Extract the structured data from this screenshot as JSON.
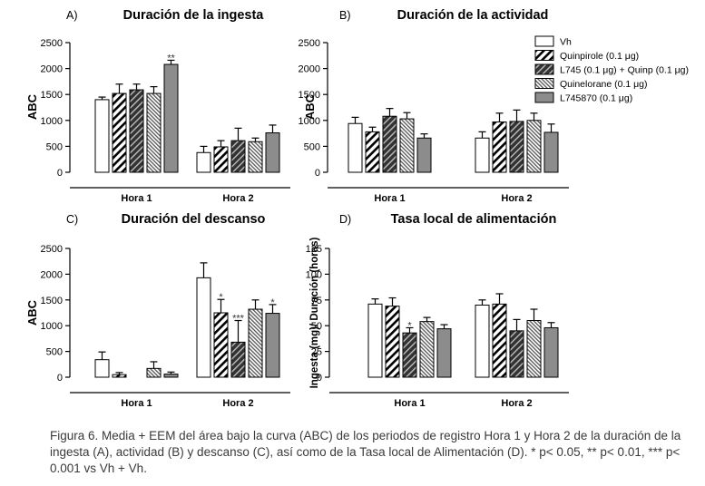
{
  "chart_data": [
    {
      "type": "bar",
      "panel": "A)",
      "title": "Duración de la ingesta",
      "ylabel": "ABC",
      "xlabel": "",
      "ylim": [
        0,
        2500
      ],
      "yticks": [
        0,
        500,
        1000,
        1500,
        2000,
        2500
      ],
      "categories": [
        "Hora 1",
        "Hora 2"
      ],
      "series": [
        {
          "name": "Vh",
          "values": [
            1400,
            380
          ],
          "errors": [
            50,
            120
          ],
          "annotations": [
            "",
            ""
          ]
        },
        {
          "name": "Quinpirole (0.1 μg)",
          "values": [
            1520,
            490
          ],
          "errors": [
            180,
            120
          ],
          "annotations": [
            "",
            ""
          ]
        },
        {
          "name": "L745 (0.1 μg) + Quinp (0.1 μg)",
          "values": [
            1590,
            610
          ],
          "errors": [
            110,
            240
          ],
          "annotations": [
            "",
            ""
          ]
        },
        {
          "name": "Quinelorane (0.1 μg)",
          "values": [
            1520,
            590
          ],
          "errors": [
            130,
            70
          ],
          "annotations": [
            "",
            ""
          ]
        },
        {
          "name": "L745870 (0.1 μg)",
          "values": [
            2080,
            760
          ],
          "errors": [
            80,
            150
          ],
          "annotations": [
            "**",
            ""
          ]
        }
      ]
    },
    {
      "type": "bar",
      "panel": "B)",
      "title": "Duración de la actividad",
      "ylabel": "ABC",
      "xlabel": "",
      "ylim": [
        0,
        2500
      ],
      "yticks": [
        0,
        500,
        1000,
        1500,
        2000,
        2500
      ],
      "categories": [
        "Hora 1",
        "Hora 2"
      ],
      "series": [
        {
          "name": "Vh",
          "values": [
            940,
            660
          ],
          "errors": [
            120,
            120
          ],
          "annotations": [
            "",
            ""
          ]
        },
        {
          "name": "Quinpirole (0.1 μg)",
          "values": [
            780,
            970
          ],
          "errors": [
            90,
            170
          ],
          "annotations": [
            "",
            ""
          ]
        },
        {
          "name": "L745 (0.1 μg) + Quinp (0.1 μg)",
          "values": [
            1080,
            980
          ],
          "errors": [
            150,
            220
          ],
          "annotations": [
            "",
            ""
          ]
        },
        {
          "name": "Quinelorane (0.1 μg)",
          "values": [
            1030,
            1000
          ],
          "errors": [
            120,
            140
          ],
          "annotations": [
            "",
            ""
          ]
        },
        {
          "name": "L745870 (0.1 μg)",
          "values": [
            660,
            770
          ],
          "errors": [
            80,
            160
          ],
          "annotations": [
            "",
            ""
          ]
        }
      ]
    },
    {
      "type": "bar",
      "panel": "C)",
      "title": "Duración del descanso",
      "ylabel": "ABC",
      "xlabel": "",
      "ylim": [
        0,
        2500
      ],
      "yticks": [
        0,
        500,
        1000,
        1500,
        2000,
        2500
      ],
      "categories": [
        "Hora 1",
        "Hora 2"
      ],
      "series": [
        {
          "name": "Vh",
          "values": [
            340,
            1930
          ],
          "errors": [
            150,
            290
          ],
          "annotations": [
            "",
            ""
          ]
        },
        {
          "name": "Quinpirole (0.1 μg)",
          "values": [
            50,
            1250
          ],
          "errors": [
            40,
            260
          ],
          "annotations": [
            "",
            "*"
          ]
        },
        {
          "name": "L745 (0.1 μg) + Quinp (0.1 μg)",
          "values": [
            0,
            680
          ],
          "errors": [
            0,
            420
          ],
          "annotations": [
            "",
            "***"
          ]
        },
        {
          "name": "Quinelorane (0.1 μg)",
          "values": [
            170,
            1320
          ],
          "errors": [
            130,
            180
          ],
          "annotations": [
            "",
            ""
          ]
        },
        {
          "name": "L745870 (0.1 μg)",
          "values": [
            60,
            1240
          ],
          "errors": [
            40,
            170
          ],
          "annotations": [
            "",
            "*"
          ]
        }
      ]
    },
    {
      "type": "bar",
      "panel": "D)",
      "title": "Tasa local de alimentación",
      "ylabel": "Ingesta (mg)/ Duración (horas)",
      "xlabel": "",
      "ylim": [
        0,
        125
      ],
      "yticks": [
        0,
        25,
        50,
        75,
        100,
        125
      ],
      "categories": [
        "Hora 1",
        "Hora 2"
      ],
      "series": [
        {
          "name": "Vh",
          "values": [
            71,
            70
          ],
          "errors": [
            5,
            5
          ],
          "annotations": [
            "",
            ""
          ]
        },
        {
          "name": "Quinpirole (0.1 μg)",
          "values": [
            69,
            71
          ],
          "errors": [
            8,
            10
          ],
          "annotations": [
            "",
            ""
          ]
        },
        {
          "name": "L745 (0.1 μg) + Quinp (0.1 μg)",
          "values": [
            43,
            45
          ],
          "errors": [
            5,
            11
          ],
          "annotations": [
            "*",
            ""
          ]
        },
        {
          "name": "Quinelorane (0.1 μg)",
          "values": [
            54,
            55
          ],
          "errors": [
            4,
            11
          ],
          "annotations": [
            "",
            ""
          ]
        },
        {
          "name": "L745870 (0.1 μg)",
          "values": [
            47,
            48
          ],
          "errors": [
            4,
            5
          ],
          "annotations": [
            "",
            ""
          ]
        }
      ]
    }
  ],
  "legend": {
    "entries": [
      "Vh",
      "Quinpirole (0.1 μg)",
      "L745 (0.1 μg) + Quinp (0.1 μg)",
      "Quinelorane (0.1 μg)",
      "L745870 (0.1 μg)"
    ],
    "placement": "top-right"
  },
  "caption": "Figura 6. Media + EEM del área bajo la curva (ABC) de los periodos de registro Hora 1 y Hora 2 de la duración de la ingesta (A), actividad (B) y descanso (C), así como de la Tasa local de Alimentación (D). * p< 0.05, ** p< 0.01, *** p< 0.001 vs Vh + Vh."
}
